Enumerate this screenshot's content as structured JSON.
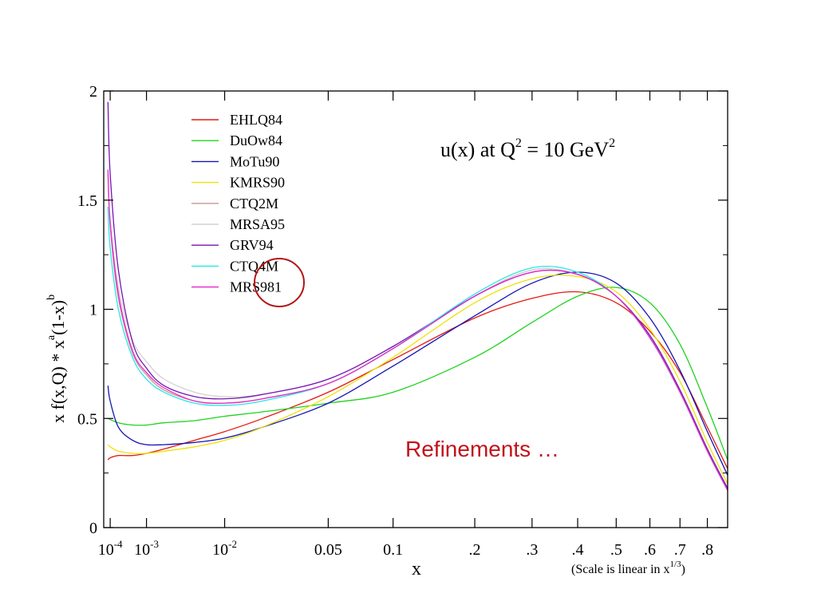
{
  "chart_data": {
    "type": "line",
    "title": "u(x) at Q2 = 10 GeV2",
    "title_parts": {
      "main": "u(x) at Q",
      "sup1": "2",
      "mid": " = 10 GeV",
      "sup2": "2"
    },
    "xlabel": "x",
    "x_scale": "linear in x^(1/3)",
    "x_scale_note": {
      "main": "(Scale is linear in x",
      "sup": "1/3",
      "end": ")"
    },
    "ylabel_parts": {
      "a": "x f(x,Q)",
      "b": " * x",
      "sup_a": "a",
      "c": "(1-x)",
      "sup_b": "b"
    },
    "xlim": [
      5e-05,
      0.88
    ],
    "ylim": [
      0,
      2
    ],
    "y_ticks": [
      {
        "value": 0,
        "label": "0"
      },
      {
        "value": 0.5,
        "label": "0.5"
      },
      {
        "value": 1,
        "label": "1"
      },
      {
        "value": 1.5,
        "label": "1.5"
      },
      {
        "value": 2,
        "label": "2"
      }
    ],
    "x_ticks": [
      {
        "value": 0.0001,
        "label": "10",
        "sup": "-4"
      },
      {
        "value": 0.001,
        "label": "10",
        "sup": "-3"
      },
      {
        "value": 0.01,
        "label": "10",
        "sup": "-2"
      },
      {
        "value": 0.05,
        "label": "0.05"
      },
      {
        "value": 0.1,
        "label": "0.1"
      },
      {
        "value": 0.2,
        "label": ".2"
      },
      {
        "value": 0.3,
        "label": ".3"
      },
      {
        "value": 0.4,
        "label": ".4"
      },
      {
        "value": 0.5,
        "label": ".5"
      },
      {
        "value": 0.6,
        "label": ".6"
      },
      {
        "value": 0.7,
        "label": ".7"
      },
      {
        "value": 0.8,
        "label": ".8"
      }
    ],
    "grid": false,
    "legend_position": "top-left",
    "annotation": {
      "text": "Refinements …",
      "color": "#c0141b"
    },
    "series": [
      {
        "name": "EHLQ84",
        "color": "#e41a10",
        "x": [
          8e-05,
          0.0001,
          0.0002,
          0.0005,
          0.001,
          0.002,
          0.005,
          0.01,
          0.02,
          0.05,
          0.1,
          0.2,
          0.3,
          0.4,
          0.5,
          0.6,
          0.7,
          0.8,
          0.88
        ],
        "y": [
          0.31,
          0.32,
          0.33,
          0.33,
          0.34,
          0.36,
          0.4,
          0.44,
          0.5,
          0.62,
          0.77,
          0.96,
          1.05,
          1.08,
          1.03,
          0.9,
          0.71,
          0.46,
          0.27
        ]
      },
      {
        "name": "DuOw84",
        "color": "#1fd21f",
        "x": [
          8e-05,
          0.0002,
          0.0005,
          0.001,
          0.002,
          0.005,
          0.01,
          0.02,
          0.05,
          0.1,
          0.2,
          0.3,
          0.4,
          0.5,
          0.6,
          0.7,
          0.8,
          0.88
        ],
        "y": [
          0.5,
          0.48,
          0.47,
          0.47,
          0.48,
          0.49,
          0.51,
          0.53,
          0.57,
          0.62,
          0.78,
          0.94,
          1.06,
          1.1,
          1.03,
          0.84,
          0.55,
          0.31
        ]
      },
      {
        "name": "MoTu90",
        "color": "#1414b4",
        "x": [
          8e-05,
          0.0001,
          0.0002,
          0.0005,
          0.001,
          0.002,
          0.005,
          0.01,
          0.02,
          0.05,
          0.1,
          0.2,
          0.3,
          0.4,
          0.5,
          0.6,
          0.7,
          0.8,
          0.88
        ],
        "y": [
          0.65,
          0.58,
          0.46,
          0.4,
          0.38,
          0.38,
          0.39,
          0.41,
          0.46,
          0.57,
          0.74,
          0.97,
          1.12,
          1.17,
          1.12,
          0.96,
          0.72,
          0.44,
          0.24
        ]
      },
      {
        "name": "KMRS90",
        "color": "#f0e10a",
        "x": [
          8e-05,
          0.0001,
          0.0002,
          0.0005,
          0.001,
          0.002,
          0.005,
          0.01,
          0.02,
          0.05,
          0.1,
          0.2,
          0.3,
          0.4,
          0.5,
          0.6,
          0.7,
          0.8,
          0.88
        ],
        "y": [
          0.38,
          0.37,
          0.35,
          0.34,
          0.34,
          0.35,
          0.37,
          0.4,
          0.46,
          0.6,
          0.78,
          1.03,
          1.14,
          1.15,
          1.08,
          0.91,
          0.67,
          0.39,
          0.2
        ]
      },
      {
        "name": "CTQ2M",
        "color": "#c89696",
        "x": [
          8e-05,
          0.0001,
          0.0002,
          0.0005,
          0.001,
          0.002,
          0.005,
          0.01,
          0.02,
          0.05,
          0.1,
          0.2,
          0.3,
          0.4,
          0.5,
          0.6,
          0.7,
          0.8,
          0.88
        ],
        "y": [
          1.62,
          1.38,
          1.05,
          0.8,
          0.7,
          0.63,
          0.58,
          0.57,
          0.59,
          0.66,
          0.82,
          1.06,
          1.18,
          1.16,
          1.06,
          0.88,
          0.63,
          0.36,
          0.18
        ]
      },
      {
        "name": "MRSA95",
        "color": "#d2d2d2",
        "x": [
          8e-05,
          0.0001,
          0.0002,
          0.0005,
          0.001,
          0.002,
          0.005,
          0.01,
          0.02,
          0.05,
          0.1,
          0.2,
          0.3,
          0.4,
          0.5,
          0.6,
          0.7,
          0.8,
          0.88
        ],
        "y": [
          1.6,
          1.4,
          1.1,
          0.86,
          0.76,
          0.68,
          0.62,
          0.6,
          0.61,
          0.68,
          0.83,
          1.06,
          1.18,
          1.16,
          1.06,
          0.88,
          0.63,
          0.36,
          0.18
        ]
      },
      {
        "name": "GRV94",
        "color": "#7814b4",
        "x": [
          8e-05,
          0.0001,
          0.0002,
          0.0005,
          0.001,
          0.002,
          0.005,
          0.01,
          0.02,
          0.05,
          0.1,
          0.2,
          0.3,
          0.4,
          0.5,
          0.6,
          0.7,
          0.8,
          0.88
        ],
        "y": [
          1.95,
          1.62,
          1.18,
          0.85,
          0.73,
          0.65,
          0.6,
          0.59,
          0.61,
          0.68,
          0.83,
          1.06,
          1.17,
          1.16,
          1.06,
          0.88,
          0.63,
          0.36,
          0.18
        ]
      },
      {
        "name": "CTQ4M",
        "color": "#28e6e6",
        "x": [
          8e-05,
          0.0001,
          0.0002,
          0.0005,
          0.001,
          0.002,
          0.005,
          0.01,
          0.02,
          0.05,
          0.1,
          0.2,
          0.3,
          0.4,
          0.5,
          0.6,
          0.7,
          0.8,
          0.88
        ],
        "y": [
          1.47,
          1.28,
          1.0,
          0.78,
          0.68,
          0.62,
          0.57,
          0.56,
          0.58,
          0.66,
          0.82,
          1.07,
          1.19,
          1.17,
          1.06,
          0.87,
          0.62,
          0.35,
          0.17
        ]
      },
      {
        "name": "MRS981",
        "color": "#e628c8",
        "x": [
          8e-05,
          0.0001,
          0.0002,
          0.0005,
          0.001,
          0.002,
          0.005,
          0.01,
          0.02,
          0.05,
          0.1,
          0.2,
          0.3,
          0.4,
          0.5,
          0.6,
          0.7,
          0.8,
          0.88
        ],
        "y": [
          1.64,
          1.4,
          1.07,
          0.81,
          0.71,
          0.64,
          0.58,
          0.57,
          0.59,
          0.66,
          0.82,
          1.06,
          1.17,
          1.16,
          1.06,
          0.87,
          0.62,
          0.35,
          0.17
        ]
      }
    ]
  },
  "highlight_circle_color": "#b41414"
}
